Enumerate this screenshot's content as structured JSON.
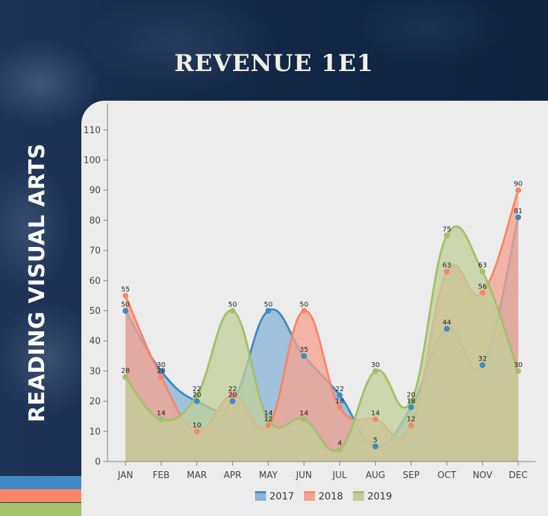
{
  "header": {
    "title": "REVENUE 1E1",
    "side_title": "READING VISUAL ARTS"
  },
  "colors": {
    "background": "#132544",
    "panel": "#ececec",
    "stripes": [
      "#3f8bc3",
      "#f7866a",
      "#a3c06a"
    ]
  },
  "chart_data": {
    "type": "area",
    "title": "REVENUE 1E1",
    "categories": [
      "JAN",
      "FEB",
      "MAR",
      "APR",
      "MAY",
      "JUN",
      "JUL",
      "AUG",
      "SEP",
      "OCT",
      "NOV",
      "DEC"
    ],
    "series": [
      {
        "name": "2017",
        "color": "#3f8bc3",
        "fill": "#88b4d8",
        "values": [
          50,
          30,
          20,
          20,
          50,
          35,
          22,
          5,
          18,
          44,
          32,
          81
        ]
      },
      {
        "name": "2018",
        "color": "#f7866a",
        "fill": "#f7a18e",
        "values": [
          55,
          28,
          10,
          22,
          12,
          50,
          18,
          14,
          12,
          63,
          56,
          90
        ]
      },
      {
        "name": "2019",
        "color": "#a3c06a",
        "fill": "#c0cf97",
        "values": [
          28,
          14,
          22,
          50,
          14,
          14,
          4,
          30,
          20,
          75,
          63,
          30
        ]
      }
    ],
    "ylim": [
      0,
      110
    ],
    "yticks": [
      0,
      10,
      20,
      30,
      40,
      50,
      60,
      70,
      80,
      90,
      100,
      110
    ],
    "xlabel": "",
    "ylabel": "",
    "grid": false,
    "curve": "smooth",
    "legend": "bottom-center"
  }
}
